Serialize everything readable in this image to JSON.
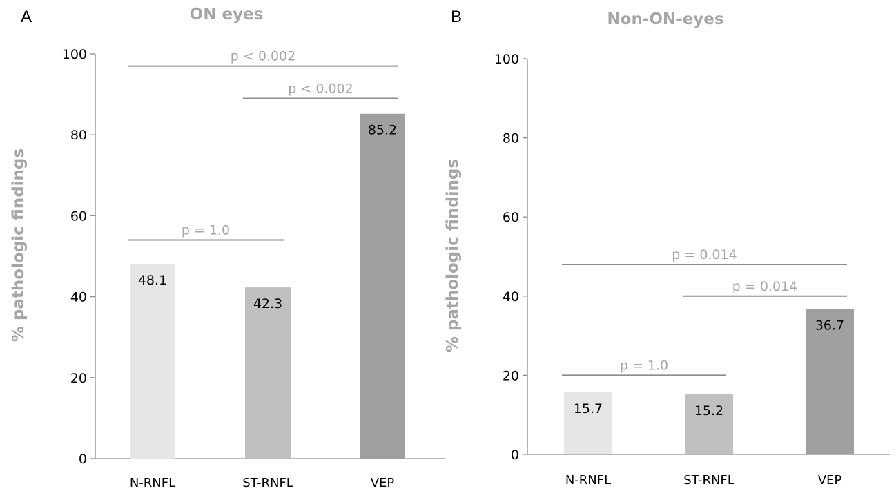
{
  "chart_data": [
    {
      "type": "bar",
      "panel_letter": "A",
      "title": "ON eyes",
      "ylabel": "% pathologic findings",
      "xlabel": "",
      "categories": [
        "N-RNFL",
        "ST-RNFL",
        "VEP"
      ],
      "values": [
        48.1,
        42.3,
        85.2
      ],
      "data_labels": [
        "48.1",
        "42.3",
        "85.2"
      ],
      "bar_colors": [
        "#e6e6e6",
        "#c0c0c0",
        "#a0a0a0"
      ],
      "ylim": [
        0,
        100
      ],
      "yticks": [
        0,
        20,
        40,
        60,
        80,
        100
      ],
      "ytick_labels": [
        "0",
        "20",
        "40",
        "60",
        "80",
        "100"
      ],
      "grid": false,
      "legend": "none",
      "annotations": [
        {
          "label": "p < 0.002",
          "from": "N-RNFL",
          "to": "VEP",
          "level": 97
        },
        {
          "label": "p < 0.002",
          "from": "ST-RNFL",
          "to": "VEP",
          "level": 89
        },
        {
          "label": "p = 1.0",
          "from": "N-RNFL",
          "to": "ST-RNFL",
          "level": 54
        }
      ]
    },
    {
      "type": "bar",
      "panel_letter": "B",
      "title": "Non-ON-eyes",
      "ylabel": "% pathologic findings",
      "xlabel": "",
      "categories": [
        "N-RNFL",
        "ST-RNFL",
        "VEP"
      ],
      "values": [
        15.7,
        15.2,
        36.7
      ],
      "data_labels": [
        "15.7",
        "15.2",
        "36.7"
      ],
      "bar_colors": [
        "#e6e6e6",
        "#c0c0c0",
        "#a0a0a0"
      ],
      "ylim": [
        0,
        100
      ],
      "yticks": [
        0,
        20,
        40,
        60,
        80,
        100
      ],
      "ytick_labels": [
        "0",
        "20",
        "40",
        "60",
        "80",
        "100"
      ],
      "grid": false,
      "legend": "none",
      "annotations": [
        {
          "label": "p = 0.014",
          "from": "N-RNFL",
          "to": "VEP",
          "level": 48
        },
        {
          "label": "p = 0.014",
          "from": "ST-RNFL",
          "to": "VEP",
          "level": 40
        },
        {
          "label": "p = 1.0",
          "from": "N-RNFL",
          "to": "ST-RNFL",
          "level": 20
        }
      ]
    }
  ],
  "colors": {
    "axis": "#8c8c8c",
    "annotation": "#a6a6a6",
    "title": "#a6a6a6",
    "text": "#000000"
  }
}
